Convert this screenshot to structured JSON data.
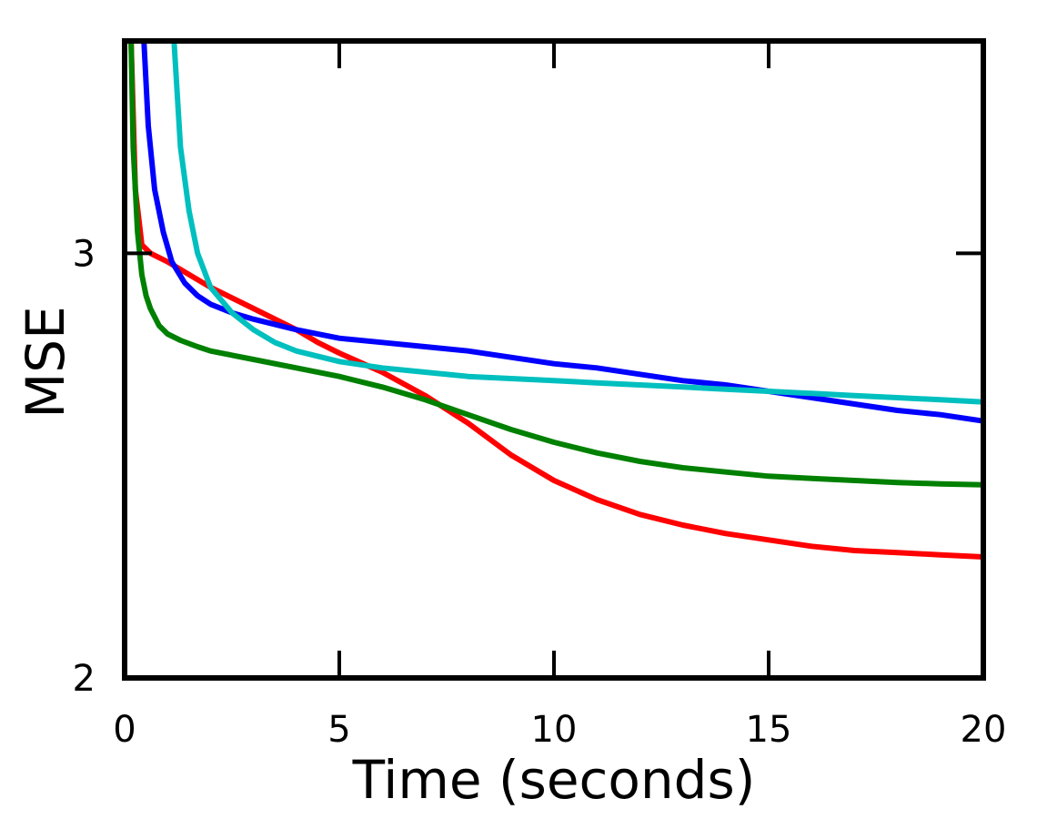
{
  "chart_data": {
    "type": "line",
    "title": "",
    "xlabel": "Time (seconds)",
    "ylabel": "MSE",
    "xlim": [
      0,
      20
    ],
    "ylim": [
      2,
      3.5
    ],
    "xticks": [
      0,
      5,
      10,
      15,
      20
    ],
    "xtick_labels": [
      "0",
      "5",
      "10",
      "15",
      "20"
    ],
    "yticks": [
      2,
      3
    ],
    "ytick_labels": [
      "2",
      "3"
    ],
    "grid": false,
    "legend": "none",
    "series": [
      {
        "color": "#ff0000",
        "x": [
          0.15,
          0.25,
          0.4,
          0.6,
          1,
          1.5,
          2,
          3,
          4,
          4.5,
          5,
          6,
          7,
          8,
          9,
          10,
          11,
          12,
          13,
          14,
          15,
          16,
          17,
          18,
          19,
          20
        ],
        "y": [
          3.5,
          3.15,
          3.02,
          3.0,
          2.98,
          2.95,
          2.92,
          2.87,
          2.82,
          2.79,
          2.765,
          2.72,
          2.665,
          2.6,
          2.525,
          2.465,
          2.42,
          2.385,
          2.36,
          2.34,
          2.325,
          2.31,
          2.3,
          2.295,
          2.29,
          2.285
        ]
      },
      {
        "color": "#0000ff",
        "x": [
          0.45,
          0.55,
          0.7,
          0.9,
          1.1,
          1.4,
          1.7,
          2,
          2.5,
          3,
          4,
          5,
          6,
          7,
          8,
          9,
          10,
          11,
          12,
          13,
          14,
          15,
          16,
          17,
          18,
          19,
          20
        ],
        "y": [
          3.5,
          3.3,
          3.15,
          3.05,
          2.98,
          2.93,
          2.9,
          2.88,
          2.86,
          2.845,
          2.82,
          2.8,
          2.79,
          2.78,
          2.77,
          2.755,
          2.74,
          2.73,
          2.715,
          2.7,
          2.69,
          2.675,
          2.66,
          2.645,
          2.63,
          2.62,
          2.605
        ]
      },
      {
        "color": "#008000",
        "x": [
          0.15,
          0.2,
          0.3,
          0.4,
          0.5,
          0.6,
          0.8,
          1,
          1.3,
          1.7,
          2,
          3,
          4,
          5,
          6,
          7,
          8,
          9,
          10,
          11,
          12,
          13,
          14,
          15,
          16,
          17,
          18,
          19,
          20
        ],
        "y": [
          3.5,
          3.25,
          3.05,
          2.95,
          2.9,
          2.87,
          2.83,
          2.81,
          2.795,
          2.78,
          2.77,
          2.75,
          2.73,
          2.71,
          2.685,
          2.655,
          2.62,
          2.585,
          2.555,
          2.53,
          2.51,
          2.495,
          2.485,
          2.475,
          2.47,
          2.465,
          2.46,
          2.457,
          2.455
        ]
      },
      {
        "color": "#00bfbf",
        "x": [
          1.15,
          1.3,
          1.5,
          1.7,
          2,
          2.5,
          3,
          3.5,
          4,
          5,
          6,
          7,
          8,
          9,
          10,
          11,
          12,
          13,
          14,
          15,
          16,
          17,
          18,
          19,
          20
        ],
        "y": [
          3.5,
          3.25,
          3.1,
          3.0,
          2.92,
          2.86,
          2.82,
          2.79,
          2.77,
          2.745,
          2.73,
          2.72,
          2.71,
          2.705,
          2.7,
          2.695,
          2.69,
          2.685,
          2.68,
          2.675,
          2.67,
          2.665,
          2.66,
          2.655,
          2.65
        ]
      }
    ]
  }
}
